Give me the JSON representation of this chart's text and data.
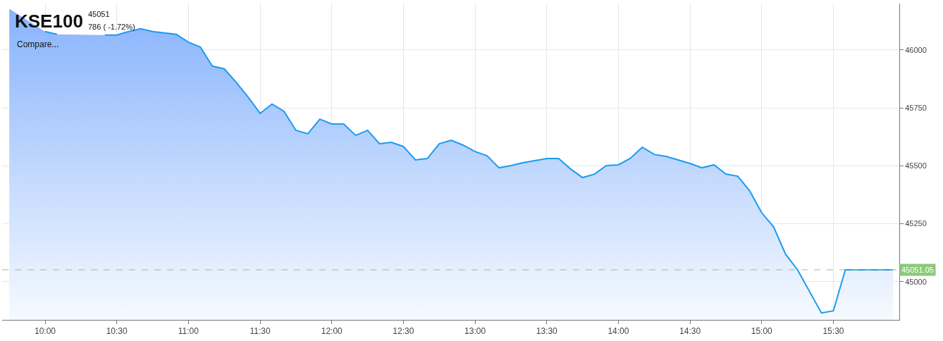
{
  "chart_data": {
    "type": "area",
    "title": "KSE100",
    "subtitle": "45051",
    "annotations": [
      "786 ( -1.72%)",
      "Compare..."
    ],
    "x": [
      9.75,
      9.8333,
      9.9167,
      10,
      10.0833,
      10.1667,
      10.25,
      10.3333,
      10.4167,
      10.5,
      10.5833,
      10.6667,
      10.75,
      10.8333,
      10.9167,
      11,
      11.0833,
      11.1667,
      11.25,
      11.3333,
      11.4167,
      11.5,
      11.5833,
      11.6667,
      11.75,
      11.8333,
      11.9167,
      12,
      12.0833,
      12.1667,
      12.25,
      12.3333,
      12.4167,
      12.5,
      12.5833,
      12.6667,
      12.75,
      12.8333,
      12.9167,
      13,
      13.0833,
      13.1667,
      13.25,
      13.3333,
      13.4167,
      13.5,
      13.5833,
      13.6667,
      13.75,
      13.8333,
      13.9167,
      14,
      14.0833,
      14.1667,
      14.25,
      14.3333,
      14.4167,
      14.5,
      14.5833,
      14.6667,
      14.75,
      14.8333,
      14.9167,
      15,
      15.0833,
      15.1667,
      15.25,
      15.4167,
      15.5,
      15.5833,
      15.9167
    ],
    "series": [
      {
        "color": "#1a9bf0",
        "values": [
          46177,
          null,
          null,
          46079,
          46067,
          null,
          null,
          null,
          46064,
          46064,
          46079,
          46091,
          46079,
          46073,
          46067,
          46033,
          46012,
          45930,
          45918,
          45860,
          45796,
          45726,
          45766,
          45735,
          45653,
          45638,
          45701,
          45680,
          45680,
          45631,
          45653,
          45595,
          45601,
          45583,
          45525,
          45531,
          45595,
          45610,
          45589,
          45561,
          45543,
          45491,
          45501,
          45513,
          45522,
          45531,
          45531,
          45486,
          45449,
          45464,
          45501,
          45504,
          45532,
          45580,
          45549,
          45540,
          45525,
          45510,
          45491,
          45504,
          45464,
          45455,
          45391,
          45297,
          45236,
          45118,
          45051,
          44865,
          44874,
          45051,
          45051
        ]
      }
    ],
    "xlim": [
      9.7,
      15.96
    ],
    "xticks": [
      {
        "value": 10,
        "label": "10:00"
      },
      {
        "value": 10.5,
        "label": "10:30"
      },
      {
        "value": 11,
        "label": "11:00"
      },
      {
        "value": 11.5,
        "label": "11:30"
      },
      {
        "value": 12,
        "label": "12:00"
      },
      {
        "value": 12.5,
        "label": "12:30"
      },
      {
        "value": 13,
        "label": "13:00"
      },
      {
        "value": 13.5,
        "label": "13:30"
      },
      {
        "value": 14,
        "label": "14:00"
      },
      {
        "value": 14.5,
        "label": "14:30"
      },
      {
        "value": 15,
        "label": "15:00"
      },
      {
        "value": 15.5,
        "label": "15:30"
      }
    ],
    "ylim": [
      44835,
      46200
    ],
    "yticks": [
      45000,
      45250,
      45500,
      45750,
      46000
    ],
    "ref_lines": [
      {
        "axis": "y",
        "value": 45051.05,
        "label": "45051.05",
        "color": "#8cc97a",
        "line_style": "dashed"
      }
    ],
    "grid": true,
    "marker": "none",
    "line_style": "solid"
  }
}
